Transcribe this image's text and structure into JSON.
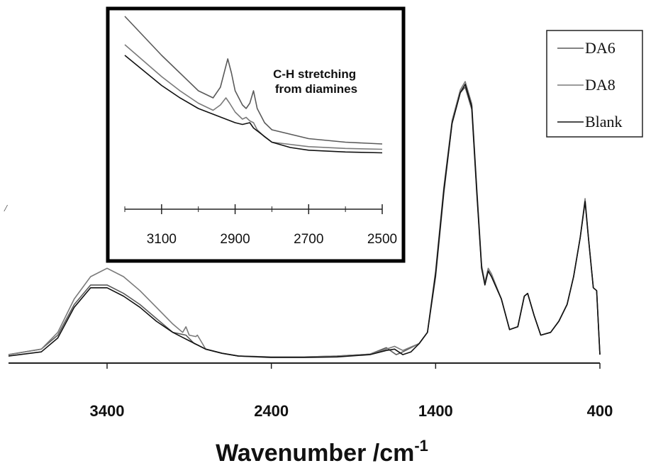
{
  "chart_data": {
    "type": "line",
    "xlabel": "Wavenumber /cm",
    "xlabel_sup": "-1",
    "xlim": [
      4000,
      400
    ],
    "x_reversed": true,
    "xticks": [
      3400,
      2400,
      1400,
      400
    ],
    "y_axis_shown": false,
    "stray_mark": "/",
    "legend": {
      "placement": "top-right",
      "entries": [
        "DA6",
        "DA8",
        "Blank"
      ]
    },
    "series": [
      {
        "name": "DA6",
        "color": "#5a5a5a",
        "points": [
          [
            4000,
            0.02
          ],
          [
            3800,
            0.04
          ],
          [
            3700,
            0.09
          ],
          [
            3600,
            0.2
          ],
          [
            3500,
            0.27
          ],
          [
            3400,
            0.27
          ],
          [
            3300,
            0.24
          ],
          [
            3200,
            0.2
          ],
          [
            3100,
            0.15
          ],
          [
            3000,
            0.1
          ],
          [
            2920,
            0.09
          ],
          [
            2870,
            0.06
          ],
          [
            2850,
            0.055
          ],
          [
            2800,
            0.04
          ],
          [
            2700,
            0.025
          ],
          [
            2600,
            0.015
          ],
          [
            2400,
            0.012
          ],
          [
            2200,
            0.012
          ],
          [
            2000,
            0.015
          ],
          [
            1800,
            0.022
          ],
          [
            1700,
            0.045
          ],
          [
            1640,
            0.02
          ],
          [
            1600,
            0.03
          ],
          [
            1500,
            0.06
          ],
          [
            1450,
            0.1
          ],
          [
            1400,
            0.3
          ],
          [
            1350,
            0.6
          ],
          [
            1300,
            0.85
          ],
          [
            1250,
            0.96
          ],
          [
            1220,
            0.98
          ],
          [
            1180,
            0.9
          ],
          [
            1150,
            0.6
          ],
          [
            1120,
            0.33
          ],
          [
            1100,
            0.28
          ],
          [
            1080,
            0.32
          ],
          [
            1060,
            0.3
          ],
          [
            1000,
            0.22
          ],
          [
            950,
            0.11
          ],
          [
            900,
            0.12
          ],
          [
            860,
            0.23
          ],
          [
            840,
            0.24
          ],
          [
            800,
            0.16
          ],
          [
            760,
            0.09
          ],
          [
            700,
            0.1
          ],
          [
            650,
            0.14
          ],
          [
            600,
            0.2
          ],
          [
            560,
            0.3
          ],
          [
            520,
            0.44
          ],
          [
            490,
            0.57
          ],
          [
            470,
            0.44
          ],
          [
            440,
            0.26
          ],
          [
            420,
            0.25
          ],
          [
            400,
            0.02
          ]
        ]
      },
      {
        "name": "DA8",
        "color": "#7a7a7a",
        "points": [
          [
            4000,
            0.02
          ],
          [
            3800,
            0.04
          ],
          [
            3700,
            0.1
          ],
          [
            3600,
            0.22
          ],
          [
            3500,
            0.3
          ],
          [
            3400,
            0.33
          ],
          [
            3300,
            0.3
          ],
          [
            3200,
            0.25
          ],
          [
            3100,
            0.19
          ],
          [
            3000,
            0.13
          ],
          [
            2940,
            0.1
          ],
          [
            2920,
            0.12
          ],
          [
            2900,
            0.09
          ],
          [
            2860,
            0.085
          ],
          [
            2850,
            0.09
          ],
          [
            2820,
            0.06
          ],
          [
            2800,
            0.04
          ],
          [
            2700,
            0.025
          ],
          [
            2600,
            0.015
          ],
          [
            2400,
            0.012
          ],
          [
            2200,
            0.012
          ],
          [
            2000,
            0.015
          ],
          [
            1800,
            0.022
          ],
          [
            1700,
            0.04
          ],
          [
            1650,
            0.05
          ],
          [
            1600,
            0.035
          ],
          [
            1500,
            0.06
          ],
          [
            1450,
            0.1
          ],
          [
            1400,
            0.32
          ],
          [
            1350,
            0.62
          ],
          [
            1300,
            0.86
          ],
          [
            1250,
            0.97
          ],
          [
            1220,
            1.0
          ],
          [
            1180,
            0.92
          ],
          [
            1150,
            0.62
          ],
          [
            1120,
            0.34
          ],
          [
            1100,
            0.28
          ],
          [
            1080,
            0.33
          ],
          [
            1060,
            0.31
          ],
          [
            1000,
            0.22
          ],
          [
            950,
            0.11
          ],
          [
            900,
            0.12
          ],
          [
            860,
            0.23
          ],
          [
            840,
            0.24
          ],
          [
            800,
            0.16
          ],
          [
            760,
            0.09
          ],
          [
            700,
            0.1
          ],
          [
            650,
            0.14
          ],
          [
            600,
            0.2
          ],
          [
            560,
            0.3
          ],
          [
            520,
            0.44
          ],
          [
            490,
            0.58
          ],
          [
            470,
            0.44
          ],
          [
            440,
            0.26
          ],
          [
            420,
            0.25
          ],
          [
            400,
            0.02
          ]
        ]
      },
      {
        "name": "Blank",
        "color": "#111111",
        "points": [
          [
            4000,
            0.015
          ],
          [
            3800,
            0.03
          ],
          [
            3700,
            0.08
          ],
          [
            3600,
            0.19
          ],
          [
            3500,
            0.26
          ],
          [
            3400,
            0.26
          ],
          [
            3300,
            0.23
          ],
          [
            3200,
            0.19
          ],
          [
            3100,
            0.14
          ],
          [
            3000,
            0.1
          ],
          [
            2900,
            0.07
          ],
          [
            2800,
            0.04
          ],
          [
            2700,
            0.025
          ],
          [
            2600,
            0.015
          ],
          [
            2400,
            0.01
          ],
          [
            2200,
            0.01
          ],
          [
            2000,
            0.012
          ],
          [
            1800,
            0.02
          ],
          [
            1700,
            0.035
          ],
          [
            1650,
            0.04
          ],
          [
            1600,
            0.02
          ],
          [
            1550,
            0.03
          ],
          [
            1500,
            0.06
          ],
          [
            1450,
            0.1
          ],
          [
            1400,
            0.31
          ],
          [
            1350,
            0.61
          ],
          [
            1300,
            0.85
          ],
          [
            1250,
            0.96
          ],
          [
            1220,
            0.99
          ],
          [
            1180,
            0.91
          ],
          [
            1150,
            0.61
          ],
          [
            1120,
            0.33
          ],
          [
            1100,
            0.27
          ],
          [
            1080,
            0.32
          ],
          [
            1060,
            0.3
          ],
          [
            1000,
            0.22
          ],
          [
            950,
            0.11
          ],
          [
            900,
            0.12
          ],
          [
            860,
            0.23
          ],
          [
            840,
            0.24
          ],
          [
            800,
            0.16
          ],
          [
            760,
            0.09
          ],
          [
            700,
            0.1
          ],
          [
            650,
            0.14
          ],
          [
            600,
            0.2
          ],
          [
            560,
            0.3
          ],
          [
            520,
            0.44
          ],
          [
            490,
            0.57
          ],
          [
            470,
            0.44
          ],
          [
            440,
            0.26
          ],
          [
            420,
            0.25
          ],
          [
            400,
            0.02
          ]
        ]
      }
    ],
    "inset": {
      "annotation_lines": [
        "C-H stretching",
        "from diamines"
      ],
      "xlim": [
        3200,
        2500
      ],
      "x_reversed": true,
      "xticks": [
        3100,
        2900,
        2700,
        2500
      ],
      "ylim": [
        0,
        1.0
      ],
      "series": [
        {
          "name": "DA8",
          "color": "#5a5a5a",
          "points": [
            [
              3200,
              1.02
            ],
            [
              3100,
              0.8
            ],
            [
              3050,
              0.7
            ],
            [
              3000,
              0.6
            ],
            [
              2960,
              0.56
            ],
            [
              2940,
              0.62
            ],
            [
              2930,
              0.7
            ],
            [
              2920,
              0.78
            ],
            [
              2910,
              0.7
            ],
            [
              2900,
              0.6
            ],
            [
              2880,
              0.52
            ],
            [
              2870,
              0.5
            ],
            [
              2860,
              0.53
            ],
            [
              2850,
              0.6
            ],
            [
              2840,
              0.5
            ],
            [
              2820,
              0.42
            ],
            [
              2800,
              0.38
            ],
            [
              2700,
              0.33
            ],
            [
              2600,
              0.31
            ],
            [
              2500,
              0.3
            ]
          ]
        },
        {
          "name": "DA6",
          "color": "#7a7a7a",
          "points": [
            [
              3200,
              0.86
            ],
            [
              3100,
              0.68
            ],
            [
              3050,
              0.6
            ],
            [
              3000,
              0.53
            ],
            [
              2960,
              0.49
            ],
            [
              2940,
              0.52
            ],
            [
              2925,
              0.56
            ],
            [
              2915,
              0.53
            ],
            [
              2900,
              0.48
            ],
            [
              2880,
              0.44
            ],
            [
              2870,
              0.45
            ],
            [
              2860,
              0.43
            ],
            [
              2850,
              0.42
            ],
            [
              2840,
              0.38
            ],
            [
              2820,
              0.34
            ],
            [
              2800,
              0.31
            ],
            [
              2700,
              0.285
            ],
            [
              2600,
              0.275
            ],
            [
              2500,
              0.27
            ]
          ]
        },
        {
          "name": "Blank",
          "color": "#111111",
          "points": [
            [
              3200,
              0.8
            ],
            [
              3100,
              0.63
            ],
            [
              3050,
              0.56
            ],
            [
              3000,
              0.5
            ],
            [
              2950,
              0.46
            ],
            [
              2900,
              0.42
            ],
            [
              2880,
              0.41
            ],
            [
              2860,
              0.42
            ],
            [
              2850,
              0.39
            ],
            [
              2800,
              0.31
            ],
            [
              2750,
              0.28
            ],
            [
              2700,
              0.265
            ],
            [
              2600,
              0.255
            ],
            [
              2500,
              0.25
            ]
          ]
        }
      ]
    }
  }
}
